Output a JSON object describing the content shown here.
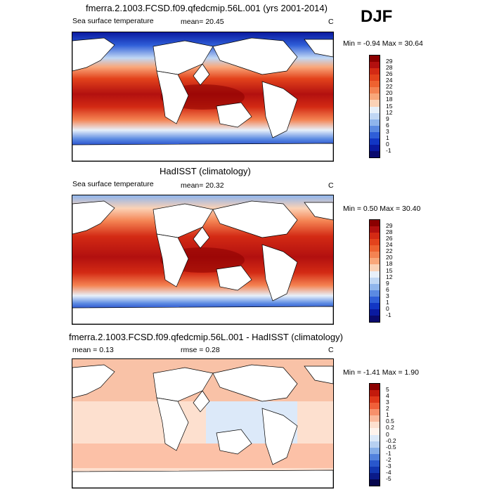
{
  "season": "DJF",
  "panels": [
    {
      "title": "fmerra.2.1003.FCSD.f09.qfedcmip.56L.001 (yrs 2001-2014)",
      "variable": "Sea surface temperature",
      "stat_text": "mean=  20.45",
      "units": "C",
      "minmax": "Min =  -0.94 Max =  30.64",
      "colorbar_labels": [
        "29",
        "28",
        "26",
        "24",
        "22",
        "20",
        "18",
        "15",
        "12",
        "9",
        "6",
        "3",
        "1",
        "0",
        "-1"
      ],
      "colorbar_colors": [
        "#8b0000",
        "#b2100f",
        "#d32a14",
        "#e3431c",
        "#ee6230",
        "#f48352",
        "#f9a77a",
        "#fbd2b6",
        "#e7f0fa",
        "#c0d7f4",
        "#8fb5ec",
        "#5b8ae2",
        "#2f5ed8",
        "#1236c4",
        "#0a1aa0",
        "#0a0a6e"
      ]
    },
    {
      "title": "HadISST (climatology)",
      "variable": "Sea surface temperature",
      "stat_text": "mean=  20.32",
      "units": "C",
      "minmax": "Min =   0.50 Max =  30.40",
      "colorbar_labels": [
        "29",
        "28",
        "26",
        "24",
        "22",
        "20",
        "18",
        "15",
        "12",
        "9",
        "6",
        "3",
        "1",
        "0",
        "-1"
      ],
      "colorbar_colors": [
        "#8b0000",
        "#b2100f",
        "#d32a14",
        "#e3431c",
        "#ee6230",
        "#f48352",
        "#f9a77a",
        "#fbd2b6",
        "#e7f0fa",
        "#c0d7f4",
        "#8fb5ec",
        "#5b8ae2",
        "#2f5ed8",
        "#1236c4",
        "#0a1aa0",
        "#0a0a6e"
      ]
    },
    {
      "title": "fmerra.2.1003.FCSD.f09.qfedcmip.56L.001 - HadISST (climatology)",
      "stat_text": "mean =   0.13",
      "rmse_text": "rmse =    0.28",
      "units": "C",
      "minmax": "Min =  -1.41 Max =   1.90",
      "colorbar_labels": [
        "5",
        "4",
        "3",
        "2",
        "1",
        "0.5",
        "0.2",
        "0",
        "-0.2",
        "-0.5",
        "-1",
        "-2",
        "-3",
        "-4",
        "-5"
      ],
      "colorbar_colors": [
        "#8b0000",
        "#c21a0c",
        "#e0381a",
        "#f0603a",
        "#f7906b",
        "#fbb99c",
        "#fde0cf",
        "#fff3ec",
        "#dce9f9",
        "#b7d0f1",
        "#86aee8",
        "#5282dd",
        "#2957cc",
        "#1236b0",
        "#0a1a88",
        "#06064e"
      ]
    }
  ]
}
